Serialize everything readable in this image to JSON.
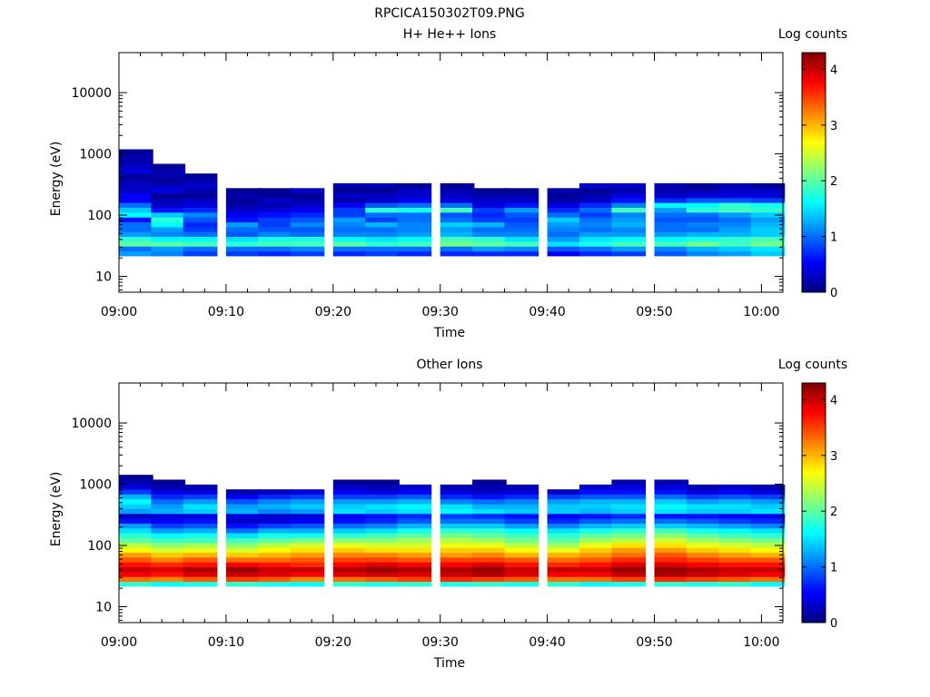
{
  "file_title": "RPCICA150302T09.PNG",
  "chart_data": [
    {
      "type": "heatmap",
      "title": "H+ He++ Ions",
      "xlabel": "Time",
      "ylabel": "Energy (eV)",
      "x_tick_labels": [
        "09:00",
        "09:10",
        "09:20",
        "09:30",
        "09:40",
        "09:50",
        "10:00"
      ],
      "y_tick_labels": [
        "10",
        "100",
        "1000",
        "10000"
      ],
      "y_scale": "log",
      "ylim": [
        5.5,
        45000
      ],
      "xlim_minutes": [
        0,
        62
      ],
      "colorbar": {
        "label": "Log counts",
        "range": [
          0,
          4.3
        ],
        "tick_labels": [
          "0",
          "1",
          "2",
          "3",
          "4"
        ]
      },
      "columns": [
        {
          "t": "09:00",
          "n": 1,
          "c": [
            1.2,
            1.0,
            2.0,
            1.8,
            1.2,
            1.0,
            1.0,
            0.6,
            1.6,
            1.4,
            1.0,
            0.5,
            0.5,
            0.3,
            0.3,
            0.2,
            0.1,
            0.4,
            0.3,
            0.2,
            0.2,
            0.1
          ]
        },
        {
          "t": "09:03",
          "n": 2,
          "c": [
            1.1,
            1.2,
            2.0,
            1.6,
            1.1,
            1.2,
            1.6,
            1.8,
            1.4,
            0.6,
            0.3,
            0.2,
            0.1,
            0.4,
            0.3,
            0.1,
            0.2,
            0.2,
            0.1
          ]
        },
        {
          "t": "09:06",
          "n": 3,
          "c": [
            0.8,
            1.0,
            1.9,
            1.6,
            1.0,
            0.8,
            0.7,
            0.9,
            1.1,
            0.7,
            0.4,
            0.3,
            0.1,
            0.2,
            0.3,
            0.2,
            0.1
          ]
        },
        {
          "t": "09:10",
          "n": 4,
          "c": [
            0.8,
            1.0,
            1.8,
            1.5,
            0.9,
            1.0,
            1.2,
            0.6,
            0.5,
            0.3,
            0.2,
            0.1,
            0.2,
            0.1
          ]
        },
        {
          "t": "09:13",
          "n": 5,
          "c": [
            0.7,
            1.0,
            1.9,
            1.7,
            1.1,
            0.9,
            0.8,
            0.8,
            0.6,
            0.4,
            0.2,
            0.3,
            0.1,
            0.1
          ]
        },
        {
          "t": "09:16",
          "n": 6,
          "c": [
            0.8,
            1.1,
            1.9,
            1.7,
            1.0,
            0.9,
            1.1,
            0.9,
            0.7,
            0.5,
            0.3,
            0.2,
            0.1,
            0.3
          ]
        },
        {
          "t": "09:20",
          "n": 7,
          "c": [
            0.7,
            1.0,
            2.0,
            1.6,
            1.1,
            1.0,
            1.1,
            1.2,
            0.8,
            0.8,
            0.5,
            0.2,
            0.3,
            0.1,
            0.2
          ]
        },
        {
          "t": "09:23",
          "n": 8,
          "c": [
            0.8,
            1.0,
            1.8,
            1.5,
            1.1,
            1.0,
            1.3,
            0.8,
            1.0,
            1.8,
            0.9,
            0.3,
            0.3,
            0.1,
            0.2
          ]
        },
        {
          "t": "09:26",
          "n": 9,
          "c": [
            0.7,
            1.0,
            1.9,
            1.6,
            1.2,
            1.1,
            1.1,
            1.0,
            1.0,
            1.7,
            1.0,
            0.5,
            0.3,
            0.3,
            0.1
          ]
        },
        {
          "t": "09:30",
          "n": 10,
          "c": [
            0.7,
            1.0,
            2.1,
            1.9,
            1.3,
            1.2,
            1.4,
            1.0,
            0.9,
            1.9,
            1.0,
            0.4,
            0.3,
            0.2,
            0.1
          ]
        },
        {
          "t": "09:33",
          "n": 11,
          "c": [
            0.7,
            1.2,
            2.0,
            1.8,
            1.1,
            1.0,
            1.3,
            0.8,
            0.7,
            0.8,
            0.4,
            0.3,
            0.2,
            0.1
          ]
        },
        {
          "t": "09:36",
          "n": 12,
          "c": [
            0.7,
            1.1,
            1.9,
            1.5,
            1.1,
            1.0,
            0.9,
            0.8,
            0.9,
            1.2,
            0.6,
            0.3,
            0.2,
            0.1
          ]
        },
        {
          "t": "09:40",
          "n": 13,
          "c": [
            0.5,
            0.9,
            1.5,
            1.2,
            1.0,
            1.1,
            1.2,
            1.4,
            1.0,
            0.7,
            0.4,
            0.2,
            0.1,
            0.2
          ]
        },
        {
          "t": "09:43",
          "n": 14,
          "c": [
            0.7,
            1.0,
            1.7,
            1.5,
            1.2,
            1.0,
            1.1,
            1.0,
            0.8,
            1.0,
            0.7,
            0.3,
            0.2,
            0.1,
            0.3
          ]
        },
        {
          "t": "09:46",
          "n": 15,
          "c": [
            0.8,
            1.2,
            1.9,
            1.6,
            1.2,
            1.1,
            1.3,
            1.2,
            1.1,
            1.9,
            1.1,
            0.6,
            0.4,
            0.2,
            0.3
          ]
        },
        {
          "t": "09:50",
          "n": 16,
          "c": [
            0.9,
            1.1,
            1.9,
            1.6,
            1.2,
            1.0,
            1.0,
            0.9,
            1.0,
            1.2,
            1.6,
            0.7,
            0.3,
            0.2,
            0.2
          ]
        },
        {
          "t": "09:53",
          "n": 17,
          "c": [
            1.1,
            1.3,
            2.1,
            1.7,
            1.3,
            1.0,
            1.1,
            0.9,
            1.0,
            1.8,
            1.6,
            0.9,
            0.4,
            0.2,
            0.1
          ]
        },
        {
          "t": "09:56",
          "n": 18,
          "c": [
            1.2,
            1.4,
            1.9,
            1.8,
            1.3,
            1.2,
            1.1,
            1.0,
            1.2,
            1.9,
            1.8,
            0.9,
            0.4,
            0.3,
            0.2
          ]
        },
        {
          "t": "09:59",
          "n": 19,
          "c": [
            1.4,
            1.5,
            2.1,
            1.9,
            1.4,
            1.4,
            1.3,
            1.2,
            1.4,
            1.8,
            1.7,
            0.8,
            0.4,
            0.3,
            0.1
          ]
        }
      ]
    },
    {
      "type": "heatmap",
      "title": "Other Ions",
      "xlabel": "Time",
      "ylabel": "Energy (eV)",
      "x_tick_labels": [
        "09:00",
        "09:10",
        "09:20",
        "09:30",
        "09:40",
        "09:50",
        "10:00"
      ],
      "y_tick_labels": [
        "10",
        "100",
        "1000",
        "10000"
      ],
      "y_scale": "log",
      "ylim": [
        5.5,
        45000
      ],
      "xlim_minutes": [
        0,
        62
      ],
      "colorbar": {
        "label": "Log counts",
        "range": [
          0,
          4.3
        ],
        "tick_labels": [
          "0",
          "1",
          "2",
          "3",
          "4"
        ]
      },
      "columns": [
        {
          "t": "09:00",
          "n": 1,
          "c": [
            1.8,
            3.3,
            3.8,
            4.0,
            3.7,
            3.4,
            3.1,
            2.7,
            2.4,
            2.0,
            1.8,
            1.5,
            1.2,
            0.6,
            0.3,
            1.2,
            1.4,
            1.6,
            1.3,
            0.8,
            0.4,
            0.2,
            0.1
          ]
        },
        {
          "t": "09:03",
          "n": 2,
          "c": [
            1.6,
            3.2,
            3.7,
            3.9,
            3.6,
            3.2,
            2.9,
            2.5,
            2.2,
            1.9,
            1.6,
            1.2,
            0.8,
            0.5,
            0.4,
            1.3,
            1.2,
            1.0,
            0.7,
            0.4,
            0.2,
            0.1
          ]
        },
        {
          "t": "09:06",
          "n": 3,
          "c": [
            1.7,
            3.4,
            3.9,
            4.1,
            3.7,
            3.4,
            3.0,
            2.6,
            2.3,
            1.9,
            1.7,
            1.3,
            0.9,
            0.6,
            0.4,
            1.4,
            1.5,
            1.2,
            0.8,
            0.4,
            0.2
          ]
        },
        {
          "t": "09:10",
          "n": 4,
          "c": [
            1.8,
            3.5,
            4.0,
            4.2,
            3.8,
            3.3,
            2.9,
            2.5,
            2.2,
            1.9,
            1.5,
            1.0,
            0.6,
            0.3,
            0.4,
            1.3,
            1.2,
            0.9,
            0.5,
            0.2
          ]
        },
        {
          "t": "09:13",
          "n": 5,
          "c": [
            1.7,
            3.4,
            3.9,
            4.0,
            3.7,
            3.3,
            3.0,
            2.7,
            2.4,
            2.0,
            1.7,
            1.3,
            0.8,
            0.4,
            0.3,
            1.1,
            1.3,
            1.1,
            0.7,
            0.3
          ]
        },
        {
          "t": "09:16",
          "n": 6,
          "c": [
            1.6,
            3.2,
            3.8,
            4.0,
            3.6,
            3.4,
            3.1,
            2.8,
            2.5,
            2.1,
            1.7,
            1.3,
            0.9,
            0.5,
            0.4,
            1.2,
            1.4,
            1.2,
            0.8,
            0.4
          ]
        },
        {
          "t": "09:20",
          "n": 7,
          "c": [
            1.8,
            3.3,
            3.9,
            4.1,
            3.8,
            3.5,
            3.2,
            2.9,
            2.6,
            2.2,
            1.8,
            1.4,
            1.0,
            0.6,
            0.5,
            1.5,
            1.4,
            1.2,
            0.8,
            0.5,
            0.3,
            0.1
          ]
        },
        {
          "t": "09:23",
          "n": 8,
          "c": [
            1.7,
            3.4,
            4.0,
            4.2,
            3.9,
            3.5,
            3.2,
            2.8,
            2.5,
            2.2,
            1.9,
            1.5,
            1.1,
            0.7,
            0.6,
            1.4,
            1.5,
            1.2,
            0.8,
            0.4,
            0.2,
            0.1
          ]
        },
        {
          "t": "09:26",
          "n": 9,
          "c": [
            1.8,
            3.5,
            3.9,
            4.1,
            3.8,
            3.4,
            3.1,
            2.8,
            2.5,
            2.3,
            2.0,
            1.7,
            1.3,
            0.9,
            0.7,
            1.5,
            1.6,
            1.3,
            0.9,
            0.5,
            0.3
          ]
        },
        {
          "t": "09:30",
          "n": 10,
          "c": [
            1.7,
            3.6,
            4.0,
            4.1,
            3.8,
            3.5,
            3.1,
            2.9,
            2.6,
            2.4,
            2.1,
            1.8,
            1.4,
            1.0,
            0.8,
            1.6,
            1.5,
            1.1,
            0.7,
            0.4,
            0.2
          ]
        },
        {
          "t": "09:33",
          "n": 11,
          "c": [
            1.8,
            3.5,
            4.1,
            4.2,
            3.9,
            3.5,
            3.2,
            2.9,
            2.6,
            2.3,
            2.0,
            1.8,
            1.4,
            1.0,
            0.7,
            1.5,
            1.3,
            1.0,
            0.6,
            0.3,
            0.2,
            0.1
          ]
        },
        {
          "t": "09:36",
          "n": 12,
          "c": [
            1.7,
            3.4,
            3.9,
            4.0,
            3.7,
            3.4,
            3.0,
            2.7,
            2.4,
            2.1,
            1.9,
            1.6,
            1.2,
            0.8,
            0.6,
            1.4,
            1.3,
            1.1,
            0.7,
            0.4,
            0.2
          ]
        },
        {
          "t": "09:40",
          "n": 13,
          "c": [
            1.8,
            3.3,
            3.8,
            4.0,
            3.6,
            3.3,
            3.0,
            2.6,
            2.3,
            2.0,
            1.8,
            1.5,
            1.1,
            0.7,
            0.5,
            1.4,
            1.4,
            1.2,
            0.8,
            0.3
          ]
        },
        {
          "t": "09:43",
          "n": 14,
          "c": [
            1.6,
            3.3,
            3.8,
            4.0,
            3.7,
            3.4,
            3.1,
            2.9,
            2.6,
            2.3,
            2.0,
            1.7,
            1.3,
            0.9,
            0.6,
            1.3,
            1.4,
            1.3,
            0.9,
            0.6,
            0.3
          ]
        },
        {
          "t": "09:46",
          "n": 15,
          "c": [
            1.7,
            3.5,
            4.0,
            4.2,
            3.9,
            3.6,
            3.3,
            3.1,
            2.8,
            2.4,
            2.1,
            1.8,
            1.4,
            1.0,
            0.7,
            1.4,
            1.5,
            1.3,
            0.9,
            0.6,
            0.4,
            0.2
          ]
        },
        {
          "t": "09:50",
          "n": 16,
          "c": [
            1.8,
            3.6,
            4.1,
            4.2,
            3.9,
            3.6,
            3.4,
            3.1,
            2.8,
            2.5,
            2.2,
            1.9,
            1.4,
            1.0,
            0.6,
            1.5,
            1.6,
            1.4,
            1.0,
            0.6,
            0.4,
            0.2
          ]
        },
        {
          "t": "09:53",
          "n": 17,
          "c": [
            1.7,
            3.5,
            4.0,
            4.1,
            3.8,
            3.5,
            3.2,
            2.9,
            2.6,
            2.3,
            2.0,
            1.7,
            1.3,
            0.9,
            0.6,
            1.4,
            1.5,
            1.2,
            0.8,
            0.4,
            0.2
          ]
        },
        {
          "t": "09:56",
          "n": 18,
          "c": [
            1.8,
            3.4,
            3.9,
            4.0,
            3.7,
            3.4,
            3.1,
            2.8,
            2.5,
            2.2,
            1.9,
            1.6,
            1.2,
            0.8,
            0.5,
            1.4,
            1.5,
            1.3,
            0.9,
            0.5,
            0.3
          ]
        },
        {
          "t": "09:59",
          "n": 19,
          "c": [
            1.6,
            3.3,
            3.8,
            4.0,
            3.7,
            3.4,
            3.0,
            2.7,
            2.4,
            2.1,
            1.8,
            1.5,
            1.1,
            0.7,
            0.5,
            1.5,
            1.4,
            1.2,
            0.8,
            0.4,
            0.2
          ]
        }
      ]
    }
  ]
}
